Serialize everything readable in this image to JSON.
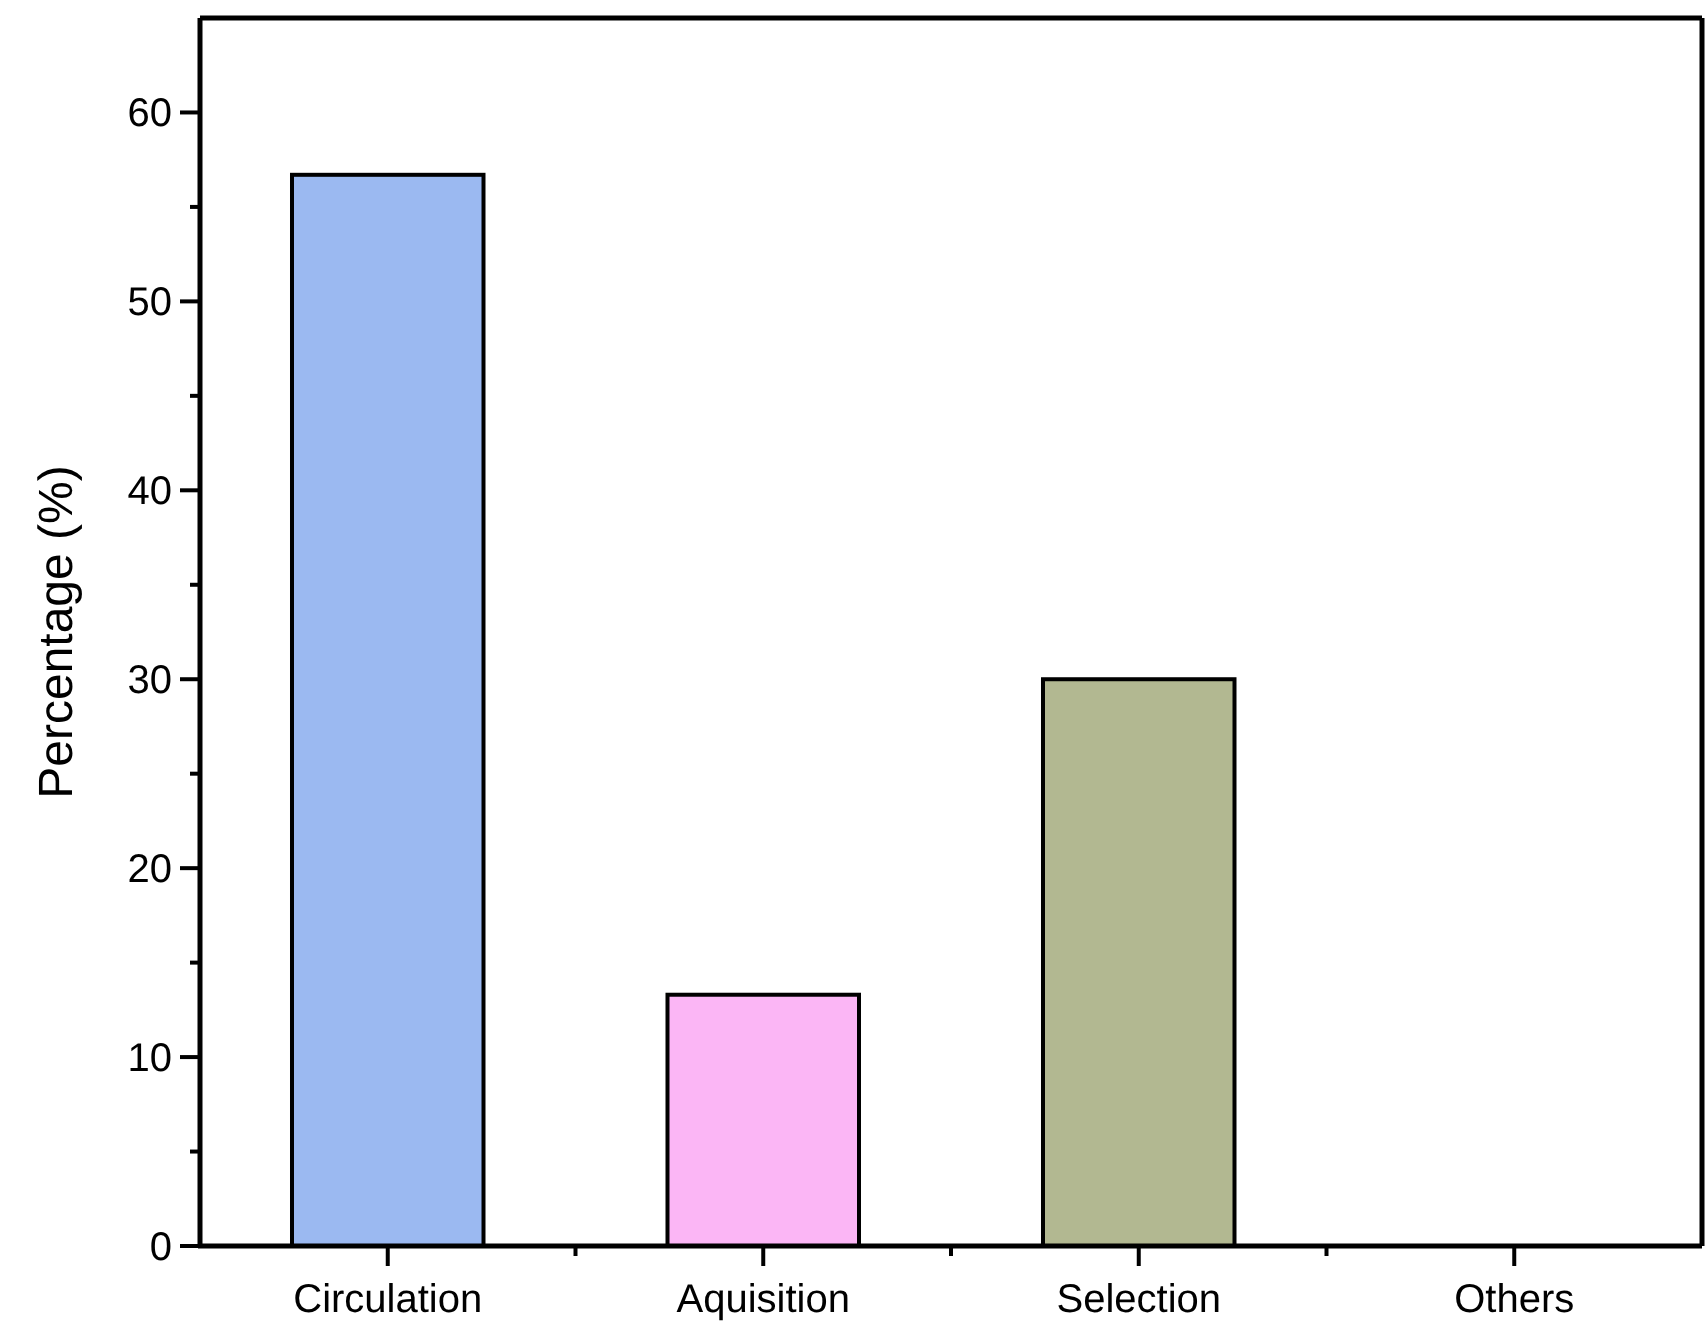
{
  "chart_data": {
    "type": "bar",
    "ylabel": "Percentage (%)",
    "categories": [
      "Circulation",
      "Aquisition",
      "Selection",
      "Others"
    ],
    "values": [
      56.7,
      13.3,
      30,
      0
    ],
    "colors": [
      "#9bb9f1",
      "#fbb6f5",
      "#b2b891",
      "#cccccc"
    ],
    "ylim": [
      0,
      65
    ],
    "yticks": [
      0,
      {
        "value": 5,
        "label": null
      },
      10,
      {
        "value": 15,
        "label": null
      },
      20,
      {
        "value": 25,
        "label": null
      },
      30,
      {
        "value": 35,
        "label": null
      },
      40,
      {
        "value": 45,
        "label": null
      },
      50,
      {
        "value": 55,
        "label": null
      },
      60
    ],
    "grid": false
  }
}
